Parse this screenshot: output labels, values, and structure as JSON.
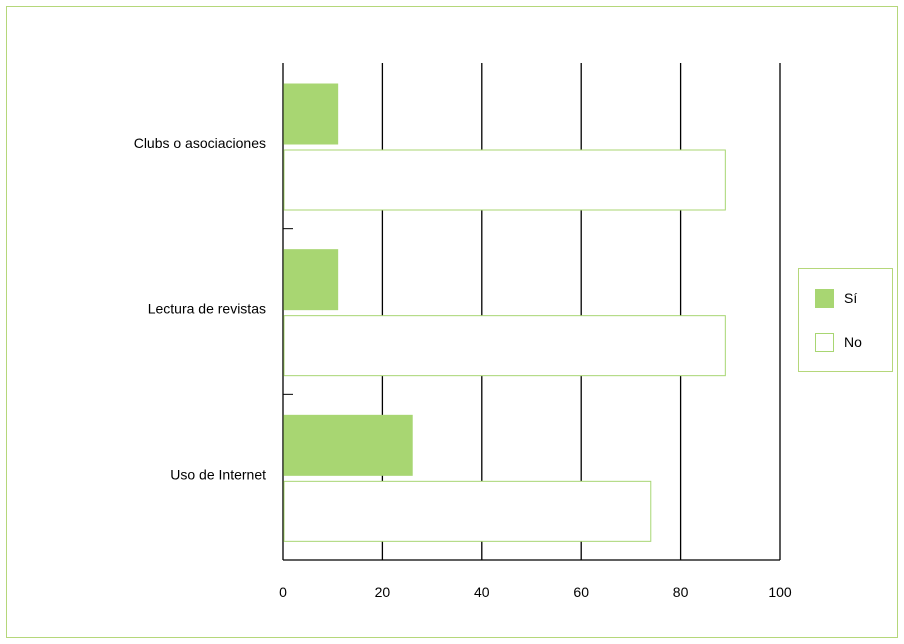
{
  "chart_data": {
    "type": "bar",
    "orientation": "horizontal",
    "categories": [
      "Clubs o asociaciones",
      "Lectura de revistas",
      "Uso de Internet"
    ],
    "series": [
      {
        "name": "Sí",
        "values": [
          11,
          11,
          26
        ],
        "color": "#a8d672",
        "fill": "#a8d672"
      },
      {
        "name": "No",
        "values": [
          89,
          89,
          74
        ],
        "color": "#a8d672",
        "fill": "#ffffff"
      }
    ],
    "xlim": [
      0,
      100
    ],
    "xticks": [
      "0",
      "20",
      "40",
      "60",
      "80",
      "100"
    ],
    "title": "",
    "xlabel": "",
    "ylabel": "",
    "grid": true,
    "legend_position": "right"
  }
}
